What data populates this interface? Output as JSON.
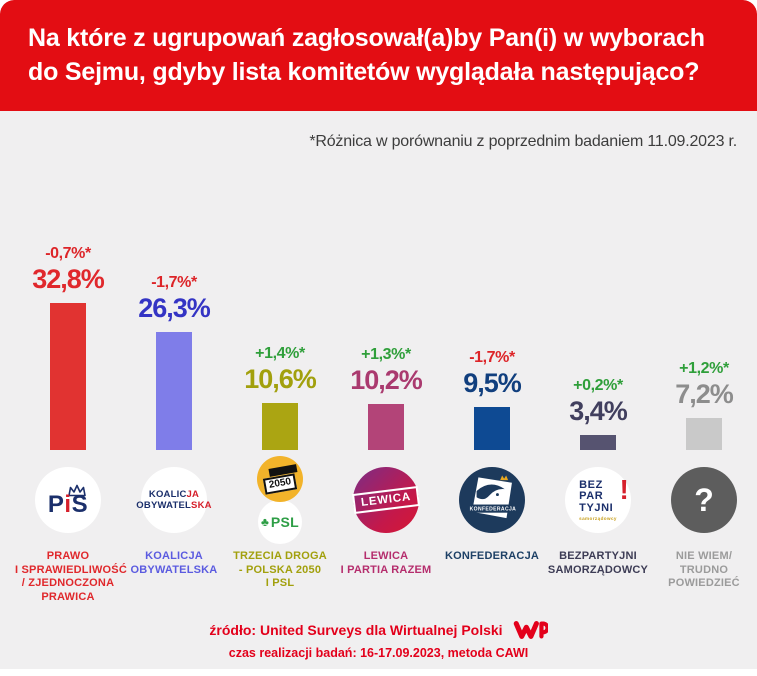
{
  "colors": {
    "header_red": "#e30d13",
    "background": "#f0eff0",
    "note_gray": "#3d3d3d",
    "footer_red": "#e3001b",
    "positive_green": "#2f9f3a",
    "negative_red": "#dd2428"
  },
  "header": {
    "title_line1": "Na które z ugrupowań zagłosował(a)by Pan(i) w wyborach",
    "title_line2": "do Sejmu, gdyby lista komitetów wyglądała następująco?"
  },
  "note": "*Różnica w porównaniu z poprzednim badaniem 11.09.2023 r.",
  "chart_data": {
    "type": "bar",
    "title": "Na które z ugrupowań zagłosował(a)by Pan(i) w wyborach do Sejmu, gdyby lista komitetów wyglądała następująco?",
    "note": "*Różnica w porównaniu z poprzednim badaniem 11.09.2023 r.",
    "unit": "%",
    "ylim": [
      0,
      35
    ],
    "grid": false,
    "legend": false,
    "categories": [
      "Prawo i Sprawiedliwość / Zjednoczona Prawica",
      "Koalicja Obywatelska",
      "Trzecia Droga - Polska 2050 i PSL",
      "Lewica i Partia Razem",
      "Konfederacja",
      "Bezpartyjni Samorządowcy",
      "Nie wiem / trudno powiedzieć"
    ],
    "values": [
      32.8,
      26.3,
      10.6,
      10.2,
      9.5,
      3.4,
      7.2
    ],
    "changes_vs_previous": [
      -0.7,
      -1.7,
      1.4,
      1.3,
      -1.7,
      0.2,
      1.2
    ],
    "bar_colors": [
      "#e13331",
      "#7f7de9",
      "#aba512",
      "#b34478",
      "#0e4a93",
      "#565370",
      "#c9c9c9"
    ]
  },
  "parties": [
    {
      "change_label": "-0,7%*",
      "change_color": "#dd2428",
      "value_label": "32,8%",
      "value": 32.8,
      "value_color": "#e0282c",
      "bar_color": "#e13331",
      "label_color": "#e0282c",
      "label_lines": [
        "PRAWO",
        "I SPRAWIEDLIWOŚĆ",
        "/ ZJEDNOCZONA",
        "PRAWICA"
      ],
      "logo": {
        "p": "P",
        "i": "i",
        "s": "S"
      }
    },
    {
      "change_label": "-1,7%*",
      "change_color": "#dd2428",
      "value_label": "26,3%",
      "value": 26.3,
      "value_color": "#3434c4",
      "bar_color": "#7f7de9",
      "label_color": "#5b5be0",
      "label_lines": [
        "KOALICJA",
        "OBYWATELSKA"
      ],
      "logo": {
        "line1a": "KOALIC",
        "line1b": "JA",
        "line2a": "OBYWATEL",
        "line2b": "SKA"
      }
    },
    {
      "change_label": "+1,4%*",
      "change_color": "#2f9f3a",
      "value_label": "10,6%",
      "value": 10.6,
      "value_color": "#a2a00d",
      "bar_color": "#aba512",
      "label_color": "#a2a00d",
      "label_lines": [
        "TRZECIA DROGA",
        "- POLSKA 2050",
        "I PSL"
      ],
      "logo": {
        "badge_2050": "2050",
        "clover": "♣",
        "psl": "PSL"
      }
    },
    {
      "change_label": "+1,3%*",
      "change_color": "#2f9f3a",
      "value_label": "10,2%",
      "value": 10.2,
      "value_color": "#aa3a6f",
      "bar_color": "#b34478",
      "label_color": "#b52d6d",
      "label_lines": [
        "LEWICA",
        "I PARTIA RAZEM"
      ],
      "logo": {
        "text": "LEWICA"
      }
    },
    {
      "change_label": "-1,7%*",
      "change_color": "#dd2428",
      "value_label": "9,5%",
      "value": 9.5,
      "value_color": "#113f7e",
      "bar_color": "#0e4a93",
      "label_color": "#1d4066",
      "label_lines": [
        "KONFEDERACJA"
      ],
      "logo": {
        "text": "KONFEDERACJA"
      }
    },
    {
      "change_label": "+0,2%*",
      "change_color": "#2f9f3a",
      "value_label": "3,4%",
      "value": 3.4,
      "value_color": "#413f5e",
      "bar_color": "#565370",
      "label_color": "#3d3c55",
      "label_lines": [
        "BEZPARTYJNI",
        "SAMORZĄDOWCY"
      ],
      "logo": {
        "l1": "BEZ",
        "l2": "PAR",
        "l3": "TYJNI",
        "bang": "!",
        "sub": "samorządowcy"
      }
    },
    {
      "change_label": "+1,2%*",
      "change_color": "#2f9f3a",
      "value_label": "7,2%",
      "value": 7.2,
      "value_color": "#8d8d8d",
      "bar_color": "#c9c9c9",
      "label_color": "#9b9b9b",
      "label_lines": [
        "NIE WIEM/",
        "TRUDNO",
        "POWIEDZIEĆ"
      ],
      "logo": {
        "text": "?"
      }
    }
  ],
  "footer": {
    "source": "źródło: United Surveys dla Wirtualnej Polski",
    "details": "czas realizacji badań: 16-17.09.2023, metoda CAWI",
    "brand": "WP"
  }
}
